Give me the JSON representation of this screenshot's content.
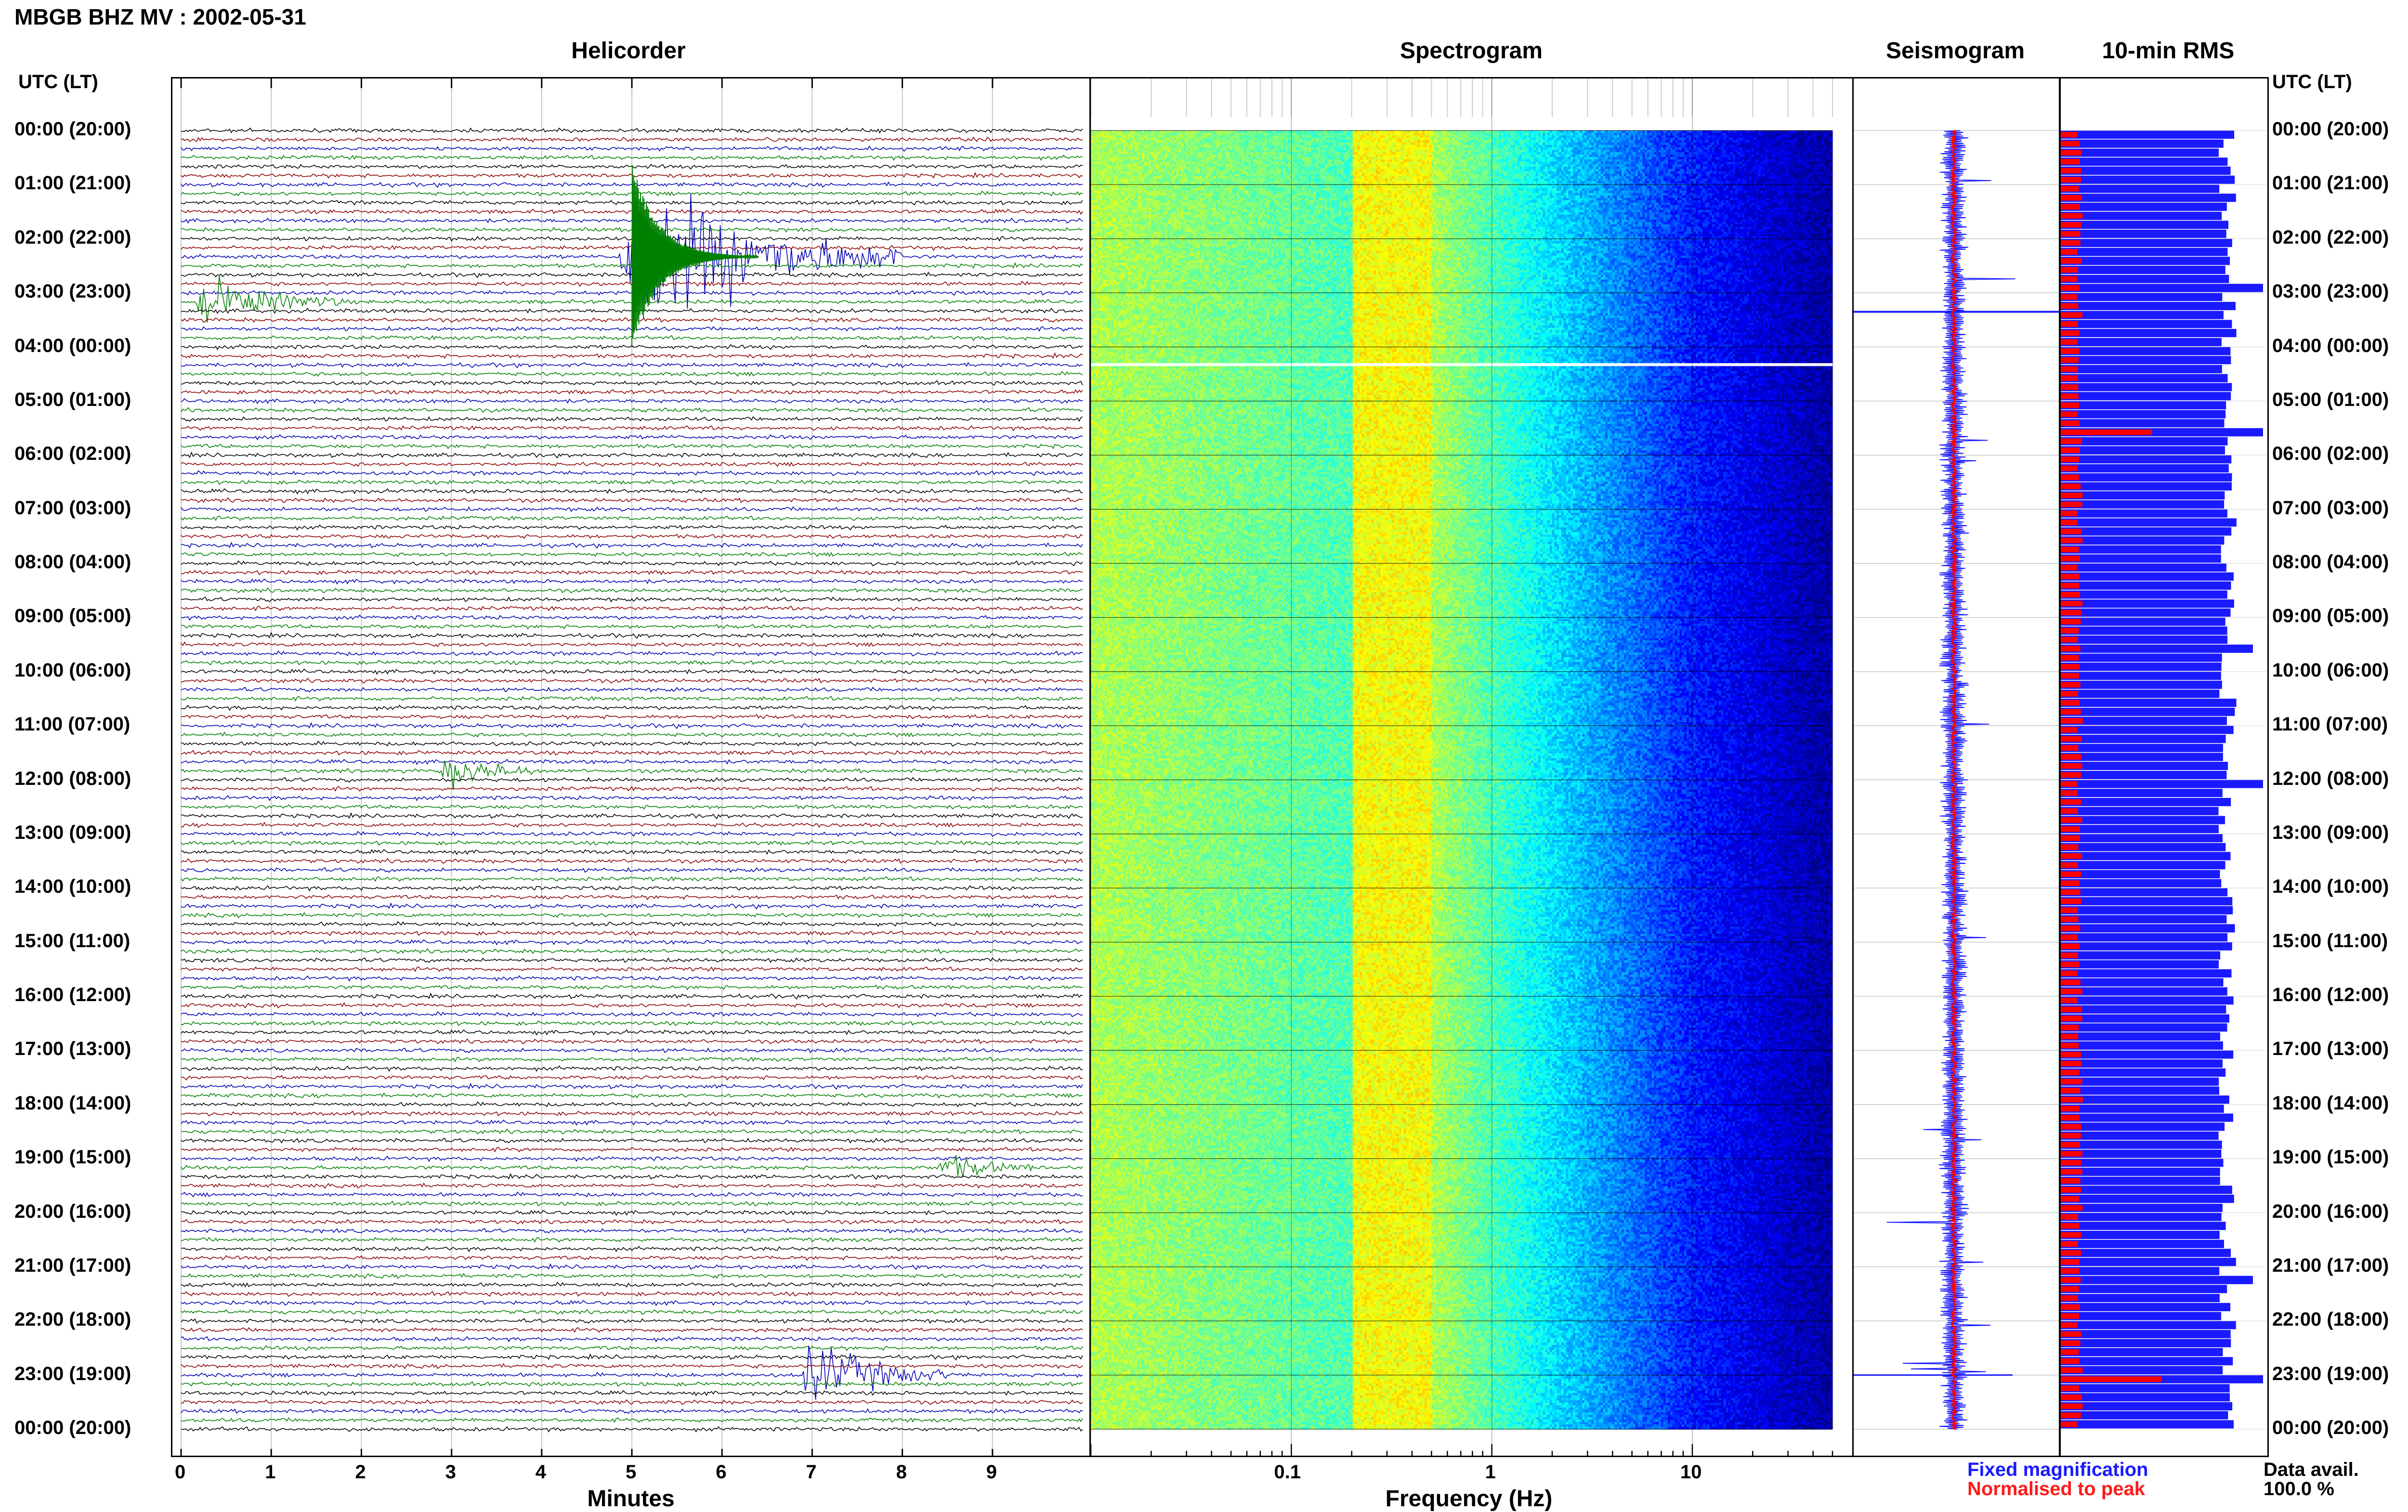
{
  "header": {
    "title": "MBGB BHZ MV : 2002-05-31",
    "utc_label": "UTC (LT)",
    "utc_label_right": "UTC (LT)"
  },
  "panels": {
    "helicorder": "Helicorder",
    "spectrogram": "Spectrogram",
    "seismogram": "Seismogram",
    "rms": "10-min RMS"
  },
  "axes": {
    "helicorder_xlabel": "Minutes",
    "spectrogram_xlabel": "Frequency (Hz)"
  },
  "legend": {
    "fixed": "Fixed magnification",
    "normalised": "Normalised to peak",
    "data_avail_label": "Data avail.",
    "data_avail_value": "100.0 %"
  },
  "colors": {
    "trace_cycle": [
      "#000000",
      "#8b0000",
      "#0000b4",
      "#008000"
    ],
    "seismo_blue": "#1a1aff",
    "seismo_red": "#ff0000",
    "rms_blue": "#1a1aff",
    "rms_red": "#ff0000"
  },
  "chart_data": [
    {
      "type": "line",
      "name": "helicorder",
      "title": "Helicorder",
      "xlabel": "Minutes",
      "xlim": [
        0,
        10
      ],
      "x_ticks": [
        0,
        1,
        2,
        3,
        4,
        5,
        6,
        7,
        8,
        9
      ],
      "x_tick_labels": [
        "0",
        "1",
        "2",
        "3",
        "4",
        "5",
        "6",
        "7",
        "8",
        "9"
      ],
      "rows_per_hour": 6,
      "hours": 24,
      "y_tick_labels": [
        "00:00 (20:00)",
        "01:00 (21:00)",
        "02:00 (22:00)",
        "03:00 (23:00)",
        "04:00 (00:00)",
        "05:00 (01:00)",
        "06:00 (02:00)",
        "07:00 (03:00)",
        "08:00 (04:00)",
        "09:00 (05:00)",
        "10:00 (06:00)",
        "11:00 (07:00)",
        "12:00 (08:00)",
        "13:00 (09:00)",
        "14:00 (10:00)",
        "15:00 (11:00)",
        "16:00 (12:00)",
        "17:00 (13:00)",
        "18:00 (14:00)",
        "19:00 (15:00)",
        "20:00 (16:00)",
        "21:00 (17:00)",
        "22:00 (18:00)",
        "23:00 (19:00)",
        "00:00 (20:00)"
      ],
      "events": [
        {
          "row": 14,
          "minute": 5.0,
          "amplitude": 10,
          "duration_min": 3
        },
        {
          "row": 19,
          "minute": 0.3,
          "amplitude": 3,
          "duration_min": 1.5
        },
        {
          "row": 71,
          "minute": 3.0,
          "amplitude": 2,
          "duration_min": 1
        },
        {
          "row": 138,
          "minute": 7.0,
          "amplitude": 4,
          "duration_min": 1.5
        },
        {
          "row": 115,
          "minute": 8.5,
          "amplitude": 1.5,
          "duration_min": 1
        }
      ]
    },
    {
      "type": "heatmap",
      "name": "spectrogram",
      "title": "Spectrogram",
      "xlabel": "Frequency (Hz)",
      "xscale": "log",
      "xlim": [
        0.01,
        50
      ],
      "x_tick_labels": [
        "0.1",
        "1",
        "10"
      ],
      "x_tick_values": [
        0.1,
        1,
        10
      ],
      "colormap": "jet",
      "dominant_band_hz": [
        0.2,
        0.5
      ]
    },
    {
      "type": "line",
      "name": "seismogram",
      "title": "Seismogram",
      "series": [
        {
          "name": "Fixed magnification",
          "color": "#1a1aff"
        },
        {
          "name": "Normalised to peak",
          "color": "#ff0000"
        }
      ]
    },
    {
      "type": "bar",
      "name": "rms",
      "title": "10-min RMS",
      "bins": 144,
      "series": [
        {
          "name": "Fixed magnification",
          "color": "#1a1aff"
        },
        {
          "name": "Normalised to peak",
          "color": "#ff0000"
        }
      ],
      "peaks_blue": [
        [
          17,
          1.0
        ],
        [
          33,
          1.0
        ],
        [
          57,
          0.95
        ],
        [
          72,
          1.0
        ],
        [
          127,
          0.95
        ],
        [
          138,
          1.0
        ]
      ],
      "peaks_red": [
        [
          33,
          0.45
        ],
        [
          138,
          0.5
        ]
      ],
      "data_availability": "100.0 %"
    }
  ]
}
